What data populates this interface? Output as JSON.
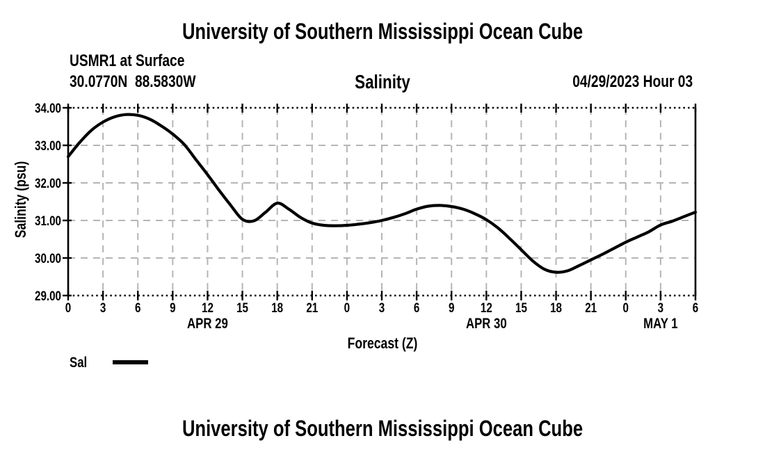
{
  "header": {
    "title": "University of Southern Mississippi Ocean Cube",
    "station": "USMR1 at Surface",
    "coordinates": "30.0770N  88.5830W",
    "plot_heading": "Salinity",
    "run_label": "04/29/2023 Hour 03"
  },
  "footer": {
    "title": "University of Southern Mississippi Ocean Cube"
  },
  "legend": {
    "label": "Sal",
    "color": "#000000"
  },
  "chart_data": {
    "type": "line",
    "title": "Salinity",
    "xlabel": "Forecast (Z)",
    "ylabel": "Salinity (psu)",
    "grid": true,
    "ylim": [
      29.0,
      34.0
    ],
    "y_ticks": [
      29,
      30,
      31,
      32,
      33,
      34
    ],
    "y_tick_labels": [
      "29.00",
      "30.00",
      "31.00",
      "32.00",
      "33.00",
      "34.00"
    ],
    "x_range": [
      0,
      54
    ],
    "x_unit": "hours from 04/29/2023 00Z",
    "x_major_ticks": [
      0,
      3,
      6,
      9,
      12,
      15,
      18,
      21,
      24,
      27,
      30,
      33,
      36,
      39,
      42,
      45,
      48,
      51,
      54
    ],
    "x_tick_labels": [
      "0",
      "3",
      "6",
      "9",
      "12",
      "15",
      "18",
      "21",
      "0",
      "3",
      "6",
      "9",
      "12",
      "15",
      "18",
      "21",
      "0",
      "3",
      "6"
    ],
    "date_labels": [
      {
        "label": "APR 29",
        "hour": 12
      },
      {
        "label": "APR 30",
        "hour": 36
      },
      {
        "label": "MAY 1",
        "hour": 51
      }
    ],
    "colors": {
      "grid": "#b5b5b5",
      "line": "#000000"
    },
    "series": [
      {
        "name": "Sal",
        "color": "#000000",
        "x_start_hour": 0,
        "x_step_hours": 1,
        "values": [
          32.7,
          33.08,
          33.4,
          33.62,
          33.76,
          33.82,
          33.8,
          33.7,
          33.52,
          33.3,
          33.02,
          32.62,
          32.22,
          31.8,
          31.4,
          31.03,
          30.99,
          31.22,
          31.46,
          31.3,
          31.08,
          30.93,
          30.87,
          30.86,
          30.87,
          30.9,
          30.94,
          31.0,
          31.08,
          31.18,
          31.3,
          31.38,
          31.4,
          31.37,
          31.3,
          31.18,
          31.02,
          30.8,
          30.52,
          30.22,
          29.92,
          29.7,
          29.62,
          29.66,
          29.8,
          29.95,
          30.1,
          30.26,
          30.42,
          30.56,
          30.7,
          30.88,
          30.98,
          31.1,
          31.22
        ]
      }
    ]
  }
}
